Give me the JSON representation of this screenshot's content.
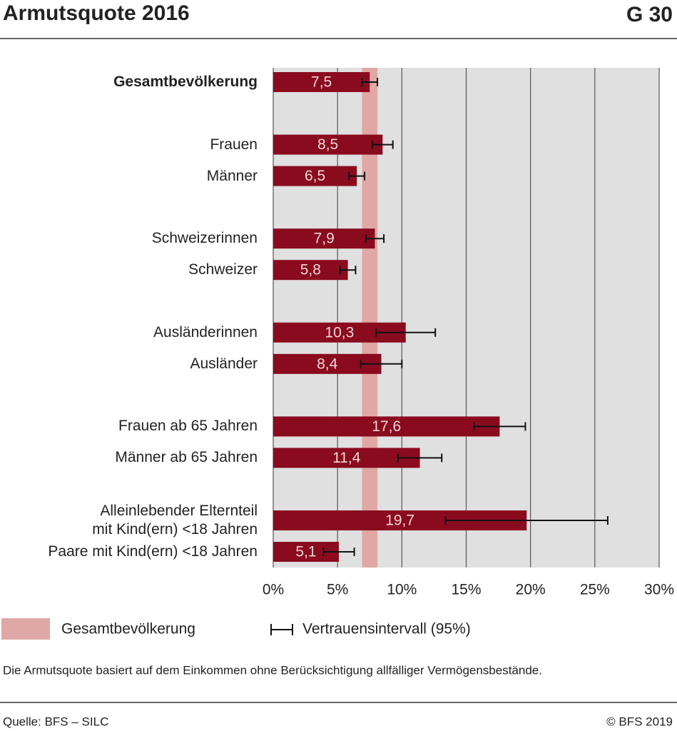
{
  "chart_data": {
    "type": "bar",
    "orientation": "horizontal",
    "title": "Armutsquote 2016",
    "chart_id": "G 30",
    "categories": [
      "Gesamtbevölkerung",
      "Frauen",
      "Männer",
      "Schweizerinnen",
      "Schweizer",
      "Ausländerinnen",
      "Ausländer",
      "Frauen ab 65 Jahren",
      "Männer ab 65 Jahren",
      "Alleinlebender Elternteil\nmit Kind(ern) <18 Jahren",
      "Paare mit Kind(ern) <18 Jahren"
    ],
    "values": [
      7.5,
      8.5,
      6.5,
      7.9,
      5.8,
      10.3,
      8.4,
      17.6,
      11.4,
      19.7,
      5.1
    ],
    "value_labels": [
      "7,5",
      "8,5",
      "6,5",
      "7,9",
      "5,8",
      "10,3",
      "8,4",
      "17,6",
      "11,4",
      "19,7",
      "5,1"
    ],
    "errors": [
      0.6,
      0.8,
      0.6,
      0.7,
      0.6,
      2.3,
      1.6,
      2.0,
      1.7,
      6.3,
      1.2
    ],
    "color": "#8a0a1e",
    "reference_band": {
      "name": "Gesamtbevölkerung",
      "range": [
        6.9,
        8.1
      ],
      "color": "#e0a8a4"
    },
    "error_legend": "Vertrauensintervall (95%)",
    "xlim": [
      0,
      30
    ],
    "xticks": [
      {
        "value": 0,
        "label": "0%"
      },
      {
        "value": 5,
        "label": "5%"
      },
      {
        "value": 10,
        "label": "10%"
      },
      {
        "value": 15,
        "label": "15%"
      },
      {
        "value": 20,
        "label": "20%"
      },
      {
        "value": 25,
        "label": "25%"
      },
      {
        "value": 30,
        "label": "30%"
      }
    ],
    "grid": true,
    "note": "Die Armutsquote basiert auf dem Einkommen ohne Berücksichtigung allfälliger Vermögensbestände.",
    "source": "Quelle: BFS – SILC",
    "copyright": "© BFS 2019"
  }
}
